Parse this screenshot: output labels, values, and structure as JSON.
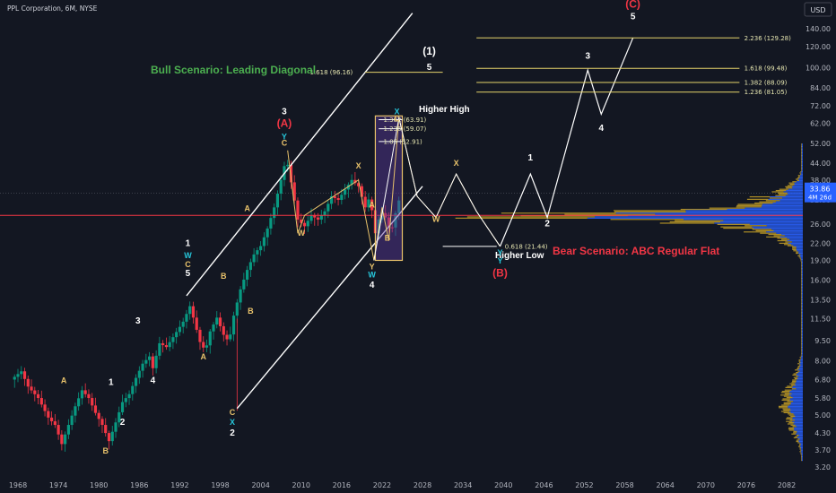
{
  "header": {
    "title": "PPL Corporation, 6M, NYSE",
    "currency": "USD"
  },
  "chart_data": {
    "type": "candlestick",
    "x_ticks": [
      "1968",
      "1974",
      "1980",
      "1986",
      "1992",
      "1998",
      "2004",
      "2010",
      "2016",
      "2022",
      "2028",
      "2034",
      "2040",
      "2046",
      "2052",
      "2058",
      "2064",
      "2070",
      "2076",
      "2082"
    ],
    "y_scale": "log",
    "y_ticks": [
      "140.00",
      "120.00",
      "100.00",
      "84.00",
      "72.00",
      "62.00",
      "52.00",
      "44.00",
      "38.00",
      "32.00",
      "26.00",
      "22.00",
      "19.00",
      "16.00",
      "13.50",
      "11.50",
      "9.50",
      "8.00",
      "6.80",
      "5.80",
      "5.00",
      "4.30",
      "3.70",
      "3.20"
    ],
    "y_ticks_values": [
      140,
      120,
      100,
      84,
      72,
      62,
      52,
      44,
      38,
      32,
      26,
      22,
      19,
      16,
      13.5,
      11.5,
      9.5,
      8,
      6.8,
      5.8,
      5,
      4.3,
      3.7,
      3.2
    ],
    "last_price": {
      "value": "33.86",
      "countdown": "4M 26d",
      "color": "#2962ff"
    },
    "horizontal_line": {
      "value": 28,
      "color": "#f23645"
    },
    "price_path": [
      [
        1967.0,
        6.8
      ],
      [
        1968.5,
        7.3
      ],
      [
        1969.5,
        6.4
      ],
      [
        1971.0,
        5.8
      ],
      [
        1972.5,
        4.9
      ],
      [
        1973.5,
        4.6
      ],
      [
        1974.5,
        3.9
      ],
      [
        1975.5,
        4.6
      ],
      [
        1976.5,
        5.4
      ],
      [
        1977.5,
        6.2
      ],
      [
        1978.5,
        5.8
      ],
      [
        1979.5,
        5.1
      ],
      [
        1980.5,
        4.6
      ],
      [
        1981.5,
        4.0
      ],
      [
        1982.5,
        4.7
      ],
      [
        1983.5,
        5.6
      ],
      [
        1984.5,
        6.0
      ],
      [
        1985.5,
        6.9
      ],
      [
        1986.5,
        7.8
      ],
      [
        1987.5,
        8.3
      ],
      [
        1988.0,
        7.5
      ],
      [
        1989.0,
        9.3
      ],
      [
        1990.0,
        9.0
      ],
      [
        1991.0,
        9.8
      ],
      [
        1992.5,
        11.2
      ],
      [
        1993.5,
        12.8
      ],
      [
        1994.0,
        11.6
      ],
      [
        1995.0,
        9.4
      ],
      [
        1995.8,
        8.7
      ],
      [
        1996.5,
        10.3
      ],
      [
        1997.5,
        11.6
      ],
      [
        1998.5,
        10.0
      ],
      [
        1999.3,
        9.4
      ],
      [
        2000.0,
        11.8
      ],
      [
        2001.0,
        14.8
      ],
      [
        2002.0,
        17.5
      ],
      [
        2003.0,
        20.0
      ],
      [
        2004.0,
        21.5
      ],
      [
        2005.0,
        25.0
      ],
      [
        2006.0,
        30.0
      ],
      [
        2007.0,
        38.0
      ],
      [
        2007.8,
        46.0
      ],
      [
        2008.8,
        34.0
      ],
      [
        2009.5,
        27.0
      ],
      [
        2010.5,
        25.5
      ],
      [
        2011.5,
        28.0
      ],
      [
        2012.5,
        27.0
      ],
      [
        2013.5,
        29.0
      ],
      [
        2014.5,
        33.0
      ],
      [
        2015.5,
        32.0
      ],
      [
        2016.5,
        35.0
      ],
      [
        2017.5,
        38.0
      ],
      [
        2018.5,
        36.0
      ],
      [
        2019.5,
        30.0
      ],
      [
        2020.2,
        33.0
      ],
      [
        2021.0,
        24.0
      ],
      [
        2021.8,
        29.0
      ],
      [
        2022.5,
        27.5
      ],
      [
        2023.3,
        24.0
      ],
      [
        2024.2,
        30.0
      ],
      [
        2024.8,
        33.8
      ]
    ],
    "volume_profile": {
      "max_price": 52,
      "min_price": 3.4,
      "colors": [
        "#2962ff",
        "#c9a227"
      ]
    },
    "fib_levels": [
      {
        "label": "2.236 (129.28)",
        "value": 129.28
      },
      {
        "label": "1.618 (99.48)",
        "value": 99.48
      },
      {
        "label": "1.382 (88.09)",
        "value": 88.09
      },
      {
        "label": "1.236 (81.05)",
        "value": 81.05
      },
      {
        "label": "1.618 (96.16)",
        "value": 96.16
      },
      {
        "label": "1.382 (63.91)",
        "value": 63.91
      },
      {
        "label": "1.236 (59.07)",
        "value": 59.07
      },
      {
        "label": "1.05 (52.91)",
        "value": 52.91
      },
      {
        "label": "0.618 (21.44)",
        "value": 21.44
      }
    ],
    "annotations": {
      "bull_scenario": "Bull Scenario: Leading Diagonal",
      "bear_scenario": "Bear Scenario: ABC Regular Flat",
      "higher_high": "Higher High",
      "higher_low": "Higher Low"
    },
    "bull_path": [
      [
        2021.0,
        19.0
      ],
      [
        2027.0,
        33.0
      ]
    ],
    "bear_path": [
      [
        2024.0,
        65.0
      ],
      [
        2027.0,
        40.0
      ],
      [
        2030.0,
        29.0
      ],
      [
        2033.0,
        40.0
      ],
      [
        2036.0,
        29.0
      ],
      [
        2039.5,
        21.44
      ],
      [
        2044.0,
        40.0
      ],
      [
        2046.5,
        27.5
      ],
      [
        2052.5,
        98.0
      ],
      [
        2054.5,
        67.0
      ],
      [
        2059.0,
        129.28
      ]
    ],
    "yellow_path": [
      [
        2021.0,
        19.0
      ],
      [
        2024.5,
        65.0
      ]
    ],
    "wave_labels": [
      {
        "text": "(1)",
        "x": 2029,
        "y": 112,
        "color": "#ffffff",
        "size": 12
      },
      {
        "text": "5",
        "x": 2029,
        "y": 98,
        "color": "#ffffff",
        "size": 10
      },
      {
        "text": "(C)",
        "x": 2059.2,
        "y": 168,
        "color": "#f23645",
        "size": 12
      },
      {
        "text": "5",
        "x": 2059.2,
        "y": 152,
        "color": "#ffffff",
        "size": 10
      },
      {
        "text": "3",
        "x": 2052.5,
        "y": 108,
        "color": "#ffffff",
        "size": 10
      },
      {
        "text": "4",
        "x": 2054.5,
        "y": 58,
        "color": "#ffffff",
        "size": 10
      },
      {
        "text": "1",
        "x": 2044.0,
        "y": 45,
        "color": "#ffffff",
        "size": 10
      },
      {
        "text": "2",
        "x": 2046.5,
        "y": 25.5,
        "color": "#ffffff",
        "size": 10
      },
      {
        "text": "(B)",
        "x": 2039.5,
        "y": 16.5,
        "color": "#f23645",
        "size": 12
      },
      {
        "text": "Y",
        "x": 2039.5,
        "y": 19.8,
        "color": "#26c6da",
        "size": 9
      },
      {
        "text": "Y",
        "x": 2039.5,
        "y": 18.5,
        "color": "#26c6da",
        "size": 9
      },
      {
        "text": "3",
        "x": 2007.5,
        "y": 67,
        "color": "#ffffff",
        "size": 10
      },
      {
        "text": "(A)",
        "x": 2007.5,
        "y": 60,
        "color": "#f23645",
        "size": 12
      },
      {
        "text": "Y",
        "x": 2007.5,
        "y": 54,
        "color": "#26c6da",
        "size": 9
      },
      {
        "text": "C",
        "x": 2007.5,
        "y": 51,
        "color": "#e8c26b",
        "size": 9
      },
      {
        "text": "X",
        "x": 2024.2,
        "y": 67,
        "color": "#26c6da",
        "size": 9
      },
      {
        "text": "C",
        "x": 2024.2,
        "y": 63,
        "color": "#e8c26b",
        "size": 9
      },
      {
        "text": "X",
        "x": 2018.5,
        "y": 42,
        "color": "#e8c26b",
        "size": 9
      },
      {
        "text": "X",
        "x": 2033.0,
        "y": 43,
        "color": "#e8c26b",
        "size": 9
      },
      {
        "text": "W",
        "x": 2030.0,
        "y": 26.5,
        "color": "#e8c26b",
        "size": 9
      },
      {
        "text": "W",
        "x": 2010.0,
        "y": 23.5,
        "color": "#e8c26b",
        "size": 9
      },
      {
        "text": "A",
        "x": 2020.5,
        "y": 30,
        "color": "#e8c26b",
        "size": 9
      },
      {
        "text": "B",
        "x": 2022.8,
        "y": 22.5,
        "color": "#e8c26b",
        "size": 9
      },
      {
        "text": "Y",
        "x": 2020.5,
        "y": 17.6,
        "color": "#e8c26b",
        "size": 9
      },
      {
        "text": "W",
        "x": 2020.5,
        "y": 16.4,
        "color": "#26c6da",
        "size": 9
      },
      {
        "text": "4",
        "x": 2020.5,
        "y": 15.0,
        "color": "#ffffff",
        "size": 10
      },
      {
        "text": "A",
        "x": 2002.0,
        "y": 29,
        "color": "#e8c26b",
        "size": 9
      },
      {
        "text": "B",
        "x": 1998.5,
        "y": 16.2,
        "color": "#e8c26b",
        "size": 9
      },
      {
        "text": "B",
        "x": 2002.5,
        "y": 12.0,
        "color": "#e8c26b",
        "size": 9
      },
      {
        "text": "1",
        "x": 1993.2,
        "y": 21.5,
        "color": "#ffffff",
        "size": 10
      },
      {
        "text": "W",
        "x": 1993.2,
        "y": 19.4,
        "color": "#26c6da",
        "size": 9
      },
      {
        "text": "C",
        "x": 1993.2,
        "y": 17.9,
        "color": "#e8c26b",
        "size": 9
      },
      {
        "text": "5",
        "x": 1993.2,
        "y": 16.6,
        "color": "#ffffff",
        "size": 10
      },
      {
        "text": "A",
        "x": 1995.5,
        "y": 8.1,
        "color": "#e8c26b",
        "size": 9
      },
      {
        "text": "3",
        "x": 1985.8,
        "y": 11.0,
        "color": "#ffffff",
        "size": 10
      },
      {
        "text": "4",
        "x": 1988.0,
        "y": 6.6,
        "color": "#ffffff",
        "size": 10
      },
      {
        "text": "1",
        "x": 1981.8,
        "y": 6.5,
        "color": "#ffffff",
        "size": 10
      },
      {
        "text": "2",
        "x": 1983.5,
        "y": 4.6,
        "color": "#ffffff",
        "size": 10
      },
      {
        "text": "A",
        "x": 1974.8,
        "y": 6.6,
        "color": "#e8c26b",
        "size": 9
      },
      {
        "text": "B",
        "x": 1981.0,
        "y": 3.6,
        "color": "#e8c26b",
        "size": 9
      },
      {
        "text": "C",
        "x": 1999.8,
        "y": 5.0,
        "color": "#e8c26b",
        "size": 9
      },
      {
        "text": "X",
        "x": 1999.8,
        "y": 4.6,
        "color": "#26c6da",
        "size": 9
      },
      {
        "text": "2",
        "x": 1999.8,
        "y": 4.2,
        "color": "#ffffff",
        "size": 10
      }
    ]
  }
}
